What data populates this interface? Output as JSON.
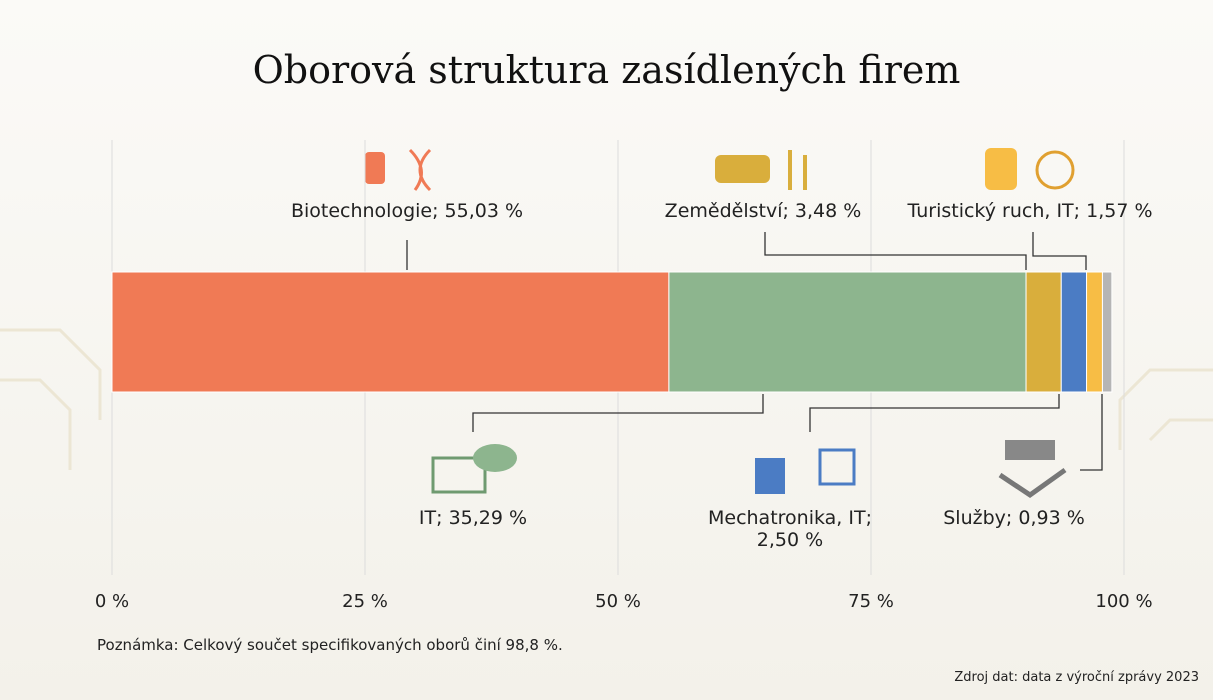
{
  "chart_data": {
    "type": "stacked-bar",
    "title": "Oborová struktura zasídlených firem",
    "series": [
      {
        "values": [
          55.03
        ],
        "value_labels": [
          "Biotechnologie; 55,03 %"
        ],
        "color": "#f07a55"
      },
      {
        "values": [
          35.29
        ],
        "value_labels": [
          "IT; 35,29 %"
        ],
        "color": "#8db58e"
      },
      {
        "values": [
          3.48
        ],
        "value_labels": [
          "Zemědělství; 3,48 %"
        ],
        "color": "#d9ae3c"
      },
      {
        "values": [
          2.5
        ],
        "value_labels": [
          "Mechatronika, IT; 2,50 %"
        ],
        "color": "#4b7cc4"
      },
      {
        "values": [
          1.57
        ],
        "value_labels": [
          "Turistický ruch, IT; 1,57 %"
        ],
        "color": "#f7bd45"
      },
      {
        "values": [
          0.93
        ],
        "value_labels": [
          "Služby; 0,93 %"
        ],
        "color": "#b5b5b5"
      }
    ],
    "xlim": [
      0,
      100
    ],
    "xticks": [
      {
        "value": 0,
        "label": "0 %"
      },
      {
        "value": 25,
        "label": "25 %"
      },
      {
        "value": 50,
        "label": "50 %"
      },
      {
        "value": 75,
        "label": "75 %"
      },
      {
        "value": 100,
        "label": "100 %"
      }
    ],
    "grid": true,
    "note": "Poznámka: Celkový součet specifikovaných oborů činí 98,8 %.",
    "source": "Zdroj dat: data z výroční zprávy 2023"
  }
}
